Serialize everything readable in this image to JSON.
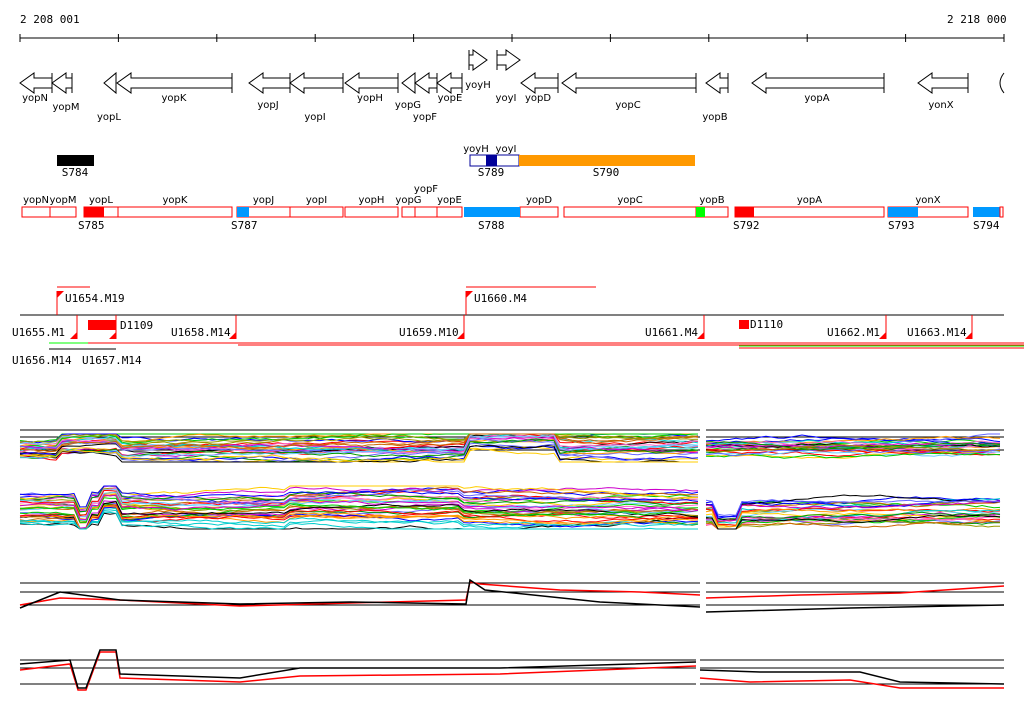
{
  "ruler": {
    "start_label": "2 208 001",
    "end_label": "2 218 000"
  },
  "genes": [
    "yopN",
    "yopM",
    "yopL",
    "yopK",
    "yopJ",
    "yopI",
    "yopH",
    "yopG",
    "yopF",
    "yopE",
    "yoyH",
    "yoyI",
    "yopD",
    "yopC",
    "yopB",
    "yopA",
    "yonX"
  ],
  "features_track": {
    "items": [
      "S784",
      "S789",
      "S790"
    ],
    "sub_labels": [
      "yoyH",
      "yoyI"
    ]
  },
  "segments_track": {
    "gene_labels": [
      "yopN",
      "yopM",
      "yopL",
      "yopK",
      "yopJ",
      "yopI",
      "yopH",
      "yopG",
      "yopF",
      "yopE",
      "yopD",
      "yopC",
      "yopB",
      "yopA",
      "yonX"
    ],
    "segment_labels": [
      "S785",
      "S787",
      "S788",
      "S792",
      "S793",
      "S794"
    ]
  },
  "units_track": {
    "labels": [
      "U1654.M19",
      "U1660.M4",
      "U1655.M1",
      "U1656.M14",
      "U1657.M14",
      "D1109",
      "U1658.M14",
      "U1659.M10",
      "U1661.M4",
      "D1110",
      "U1662.M1",
      "U1663.M14"
    ]
  },
  "colors": {
    "red": "#ff0000",
    "blue": "#0099ff",
    "green": "#00ff00",
    "orange": "#ff9900",
    "navy": "#000099",
    "black": "#000000"
  }
}
